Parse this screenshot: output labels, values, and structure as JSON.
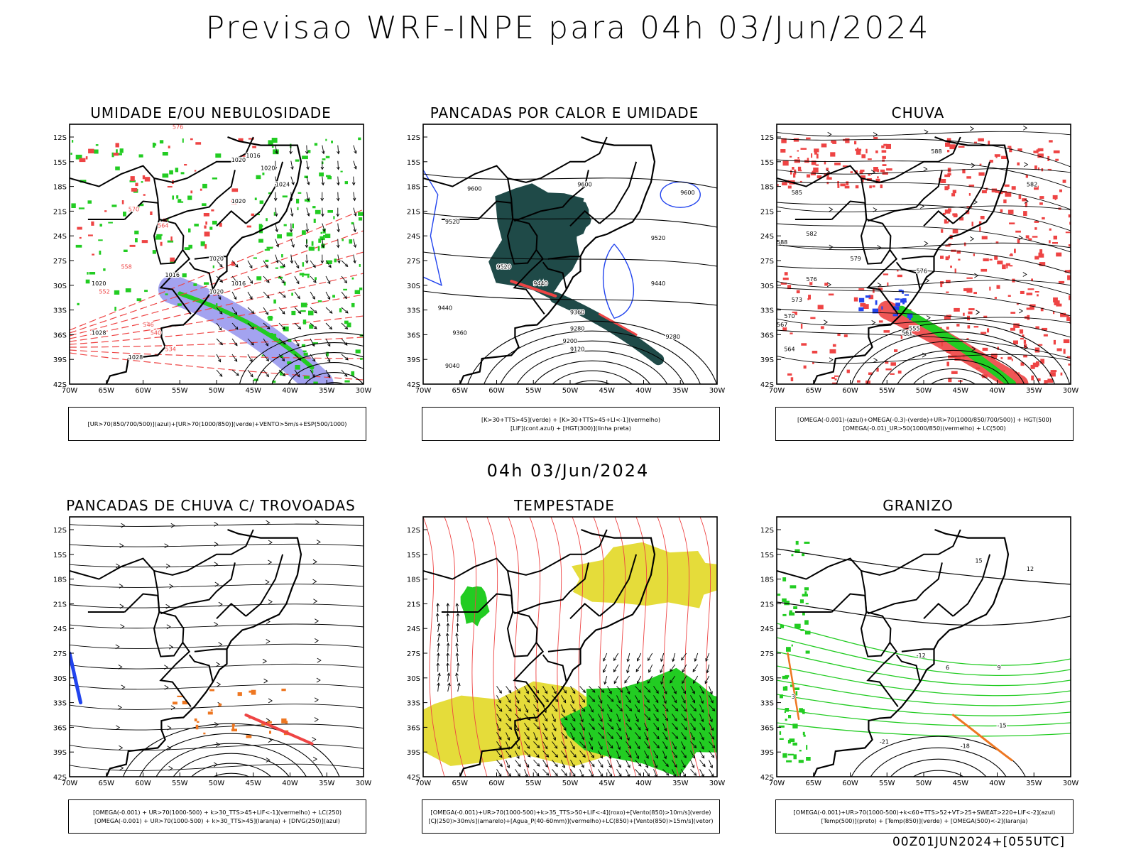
{
  "title": "Previsao WRF-INPE  para 04h 03/Jun/2024",
  "mid_title": "04h 03/Jun/2024",
  "footer": "00Z01JUN2024+[055UTC]",
  "axes": {
    "lat_ticks": [
      "12S",
      "15S",
      "18S",
      "21S",
      "24S",
      "27S",
      "30S",
      "33S",
      "36S",
      "39S",
      "42S"
    ],
    "lon_ticks": [
      "70W",
      "65W",
      "60W",
      "55W",
      "50W",
      "45W",
      "40W",
      "35W",
      "30W"
    ]
  },
  "colors": {
    "green": "#22cc22",
    "red": "#ee4444",
    "blue": "#2244ee",
    "lavender": "#9999ee",
    "dark_teal": "#1f4a48",
    "yellow": "#e5dc3a",
    "orange": "#ee7722",
    "black": "#000000"
  },
  "panels": [
    {
      "id": "umidade",
      "title": "UMIDADE E/OU NEBULOSIDADE",
      "legend": [
        "[UR>70(850/700/500)](azul)+[UR>70(1000/850)](verde)+VENTO>5m/s+ESP(500/1000)"
      ],
      "labels": [
        "1016",
        "1020",
        "1020",
        "1024",
        "1020",
        "1016",
        "1020",
        "1016",
        "1020",
        "1020",
        "1028",
        "1028",
        "576",
        "570",
        "564",
        "558",
        "552",
        "546",
        "540",
        "534"
      ]
    },
    {
      "id": "pancadas-calor",
      "title": "PANCADAS POR CALOR E UMIDADE",
      "legend": [
        "[K>30+TTS>45](verde) + [K>30+TTS>45+LI<-1](vermelho)",
        "[LIF](cont.azul) + [HGT(300)](linha preta)"
      ],
      "labels": [
        "9600",
        "9600",
        "9600",
        "9520",
        "9520",
        "9520",
        "9440",
        "9440",
        "9440",
        "9360",
        "9360",
        "9280",
        "9200",
        "9120",
        "9040",
        "9280"
      ]
    },
    {
      "id": "chuva",
      "title": "CHUVA",
      "legend": [
        "[OMEGA(-0.001)-(azul)+OMEGA(-0.3)-(verde)+UR>70(1000/850/700/500)] + HGT(500)",
        "[OMEGA(-0.01)_UR>50(1000/850)(vermelho) + LC(500)"
      ],
      "labels": [
        "588",
        "582",
        "585",
        "588",
        "582",
        "579",
        "576",
        "573",
        "570",
        "567",
        "564",
        "561",
        "555",
        "576"
      ]
    },
    {
      "id": "trovoadas",
      "title": "PANCADAS DE CHUVA C/ TROVOADAS",
      "legend": [
        "[OMEGA(-0.001) + UR>70(1000-500) + k>30_TTS>45+LIF<-1](vermelho) + LC(250)",
        "[OMEGA(-0.001) + UR>70(1000-500) + k>30_TTS>45](laranja) + [DIVG(250)](azul)"
      ],
      "labels": []
    },
    {
      "id": "tempestade",
      "title": "TEMPESTADE",
      "legend": [
        "[OMEGA(-0.001)+UR>70(1000-500)+k>35_TTS>50+LIF<-4](roxo)+[Vento(850)>10m/s](verde)",
        "[CJ(250)>30m/s](amarelo)+[Agua_P(40-60mm)](vermelho)+LC(850)+[Vento(850)>15m/s](vetor)"
      ],
      "labels": []
    },
    {
      "id": "granizo",
      "title": "GRANIZO",
      "legend": [
        "[OMEGA(-0.001)+UR>70(1000-500)+k<60+TTS>52+VT>25+SWEAT>220+LIF<-2](azul)",
        "[Temp(500)](preto) + [Temp(850)](verde) + [OMEGA(500)<-2](laranja)"
      ],
      "labels": [
        "-12",
        "-15",
        "-18",
        "-21",
        "3",
        "12",
        "15",
        "6",
        "9"
      ]
    }
  ]
}
